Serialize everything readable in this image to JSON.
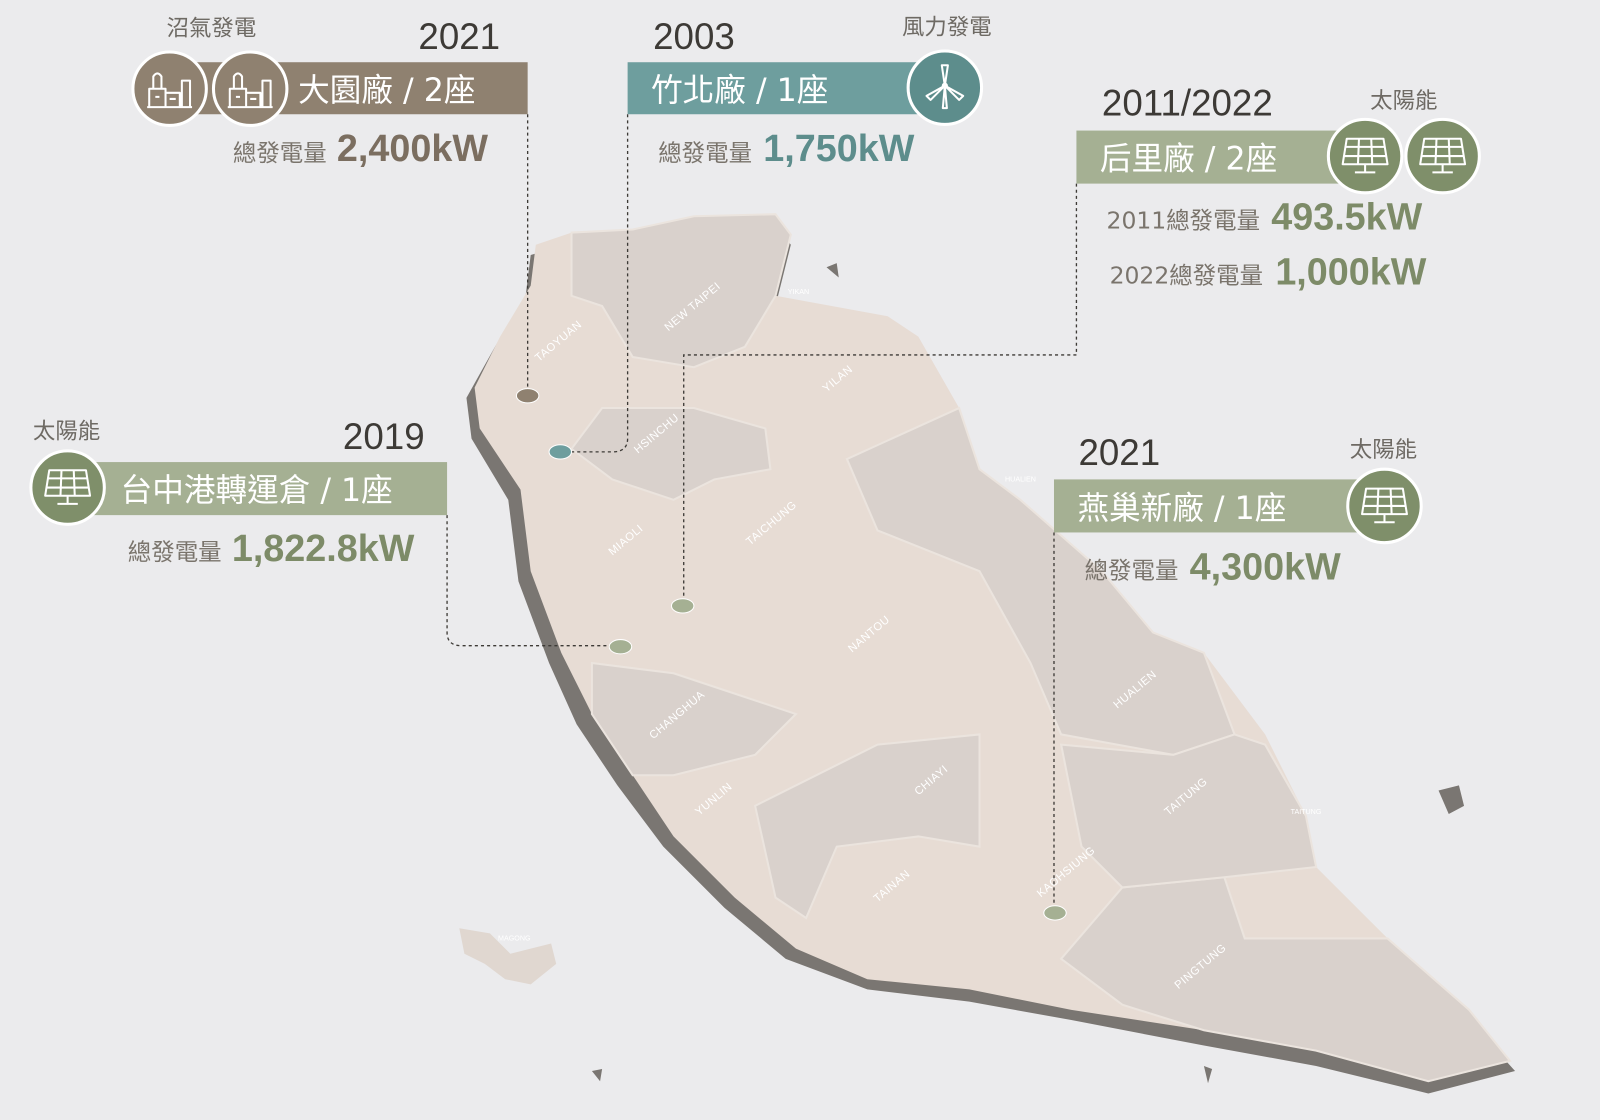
{
  "plants": [
    {
      "year": "2021",
      "type": "沼氣發電",
      "name": "大園廠 / 2座",
      "power": [
        {
          "label": "總發電量",
          "value": "2,400kW"
        }
      ]
    },
    {
      "year": "2003",
      "type": "風力發電",
      "name": "竹北廠 / 1座",
      "power": [
        {
          "label": "總發電量",
          "value": "1,750kW"
        }
      ]
    },
    {
      "year": "2011/2022",
      "type": "太陽能",
      "name": "后里廠 / 2座",
      "power": [
        {
          "label": "2011總發電量",
          "value": "493.5kW"
        },
        {
          "label": "2022總發電量",
          "value": "1,000kW"
        }
      ]
    },
    {
      "year": "2019",
      "type": "太陽能",
      "name": "台中港轉運倉 / 1座",
      "power": [
        {
          "label": "總發電量",
          "value": "1,822.8kW"
        }
      ]
    },
    {
      "year": "2021",
      "type": "太陽能",
      "name": "燕巢新廠 / 1座",
      "power": [
        {
          "label": "總發電量",
          "value": "4,300kW"
        }
      ]
    }
  ],
  "map": {
    "regions": [
      "TAOYUAN",
      "NEW TAIPEI",
      "YILAN",
      "HSINCHU",
      "MIAOLI",
      "TAICHUNG",
      "NANTOU",
      "CHANGHUA",
      "YUNLIN",
      "CHIAYI",
      "TAINAN",
      "KAOHSIUNG",
      "PINGTUNG",
      "HUALIEN",
      "TAITUNG"
    ],
    "small_labels": [
      "YIKAN",
      "HUALIEN",
      "TAITUNG",
      "MAGONG"
    ]
  }
}
